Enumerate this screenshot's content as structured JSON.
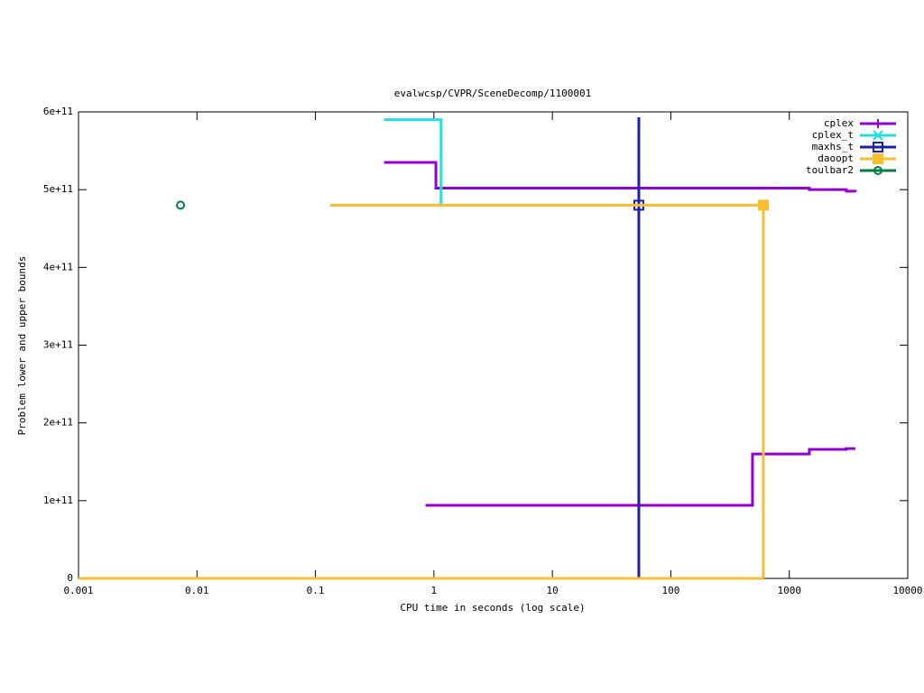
{
  "chart_data": {
    "type": "step",
    "title": "evalwcsp/CVPR/SceneDecomp/1100001",
    "x_label": "CPU time in seconds (log scale)",
    "y_label": "Problem lower and upper bounds",
    "x_log": true,
    "xlim": [
      0.001,
      10000
    ],
    "xticks": [
      0.001,
      0.01,
      0.1,
      1,
      10,
      100,
      1000,
      10000
    ],
    "ylim": [
      0,
      600000000000
    ],
    "yticks": [
      0,
      {
        "value": 100000000000,
        "label": "1e+11"
      },
      {
        "value": 200000000000,
        "label": "2e+11"
      },
      {
        "value": 300000000000,
        "label": "3e+11"
      },
      {
        "value": 400000000000,
        "label": "4e+11"
      },
      {
        "value": 500000000000,
        "label": "5e+11"
      },
      {
        "value": 600000000000,
        "label": "6e+11"
      }
    ],
    "legend": "top-right",
    "series": [
      {
        "name": "cplex",
        "color": "#9400d3",
        "point_type": "plus",
        "lines": [
          {
            "x": [
              0.38,
              1.04,
              1476,
              3030,
              3612
            ],
            "values": [
              535000000000,
              502000000000,
              500000000000,
              498000000000,
              497000000000
            ]
          },
          {
            "x": [
              0.85,
              489,
              1476,
              3030,
              3612
            ],
            "values": [
              94000000000,
              160000000000,
              166000000000,
              167000000000,
              167000000000
            ]
          }
        ]
      },
      {
        "name": "cplex_t",
        "color": "#1fe0e0",
        "point_type": "cross",
        "lines": [
          {
            "x": [
              0.38,
              1.15
            ],
            "values": [
              590000000000,
              480000000000
            ]
          }
        ]
      },
      {
        "name": "maxhs_t",
        "color": "#1a20a8",
        "point_type": "open-square",
        "lines": [
          {
            "x": [
              53.7,
              53.7
            ],
            "values": [
              593000000000,
              0
            ]
          }
        ],
        "marker": {
          "x": 53.7,
          "value": 480000000000
        }
      },
      {
        "name": "daoopt",
        "color": "#f8be30",
        "point_type": "filled-square",
        "lines": [
          {
            "x": [
              0.133,
              604,
              604
            ],
            "values": [
              480000000000,
              480000000000,
              0
            ]
          },
          {
            "x": [
              0.001,
              604
            ],
            "values": [
              0,
              0
            ]
          }
        ],
        "marker": {
          "x": 604,
          "value": 480000000000
        }
      },
      {
        "name": "toulbar2",
        "color": "#008040",
        "point_type": "open-circle",
        "lines": [],
        "marker": {
          "x": 0.00727,
          "value": 480000000000
        }
      }
    ]
  }
}
